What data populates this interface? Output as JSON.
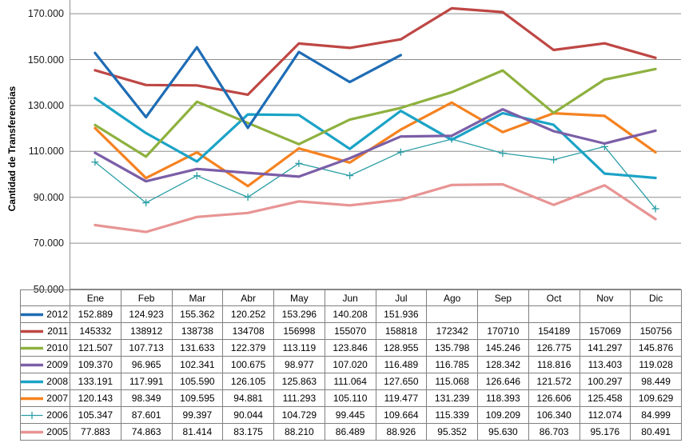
{
  "chart": {
    "y_axis_title": "Cantidad de Transferencias",
    "y_ticks": [
      "170.000",
      "150.000",
      "130.000",
      "110.000",
      "90.000",
      "70.000",
      "50.000"
    ],
    "grid_color": "#8E8E8E",
    "axis_color": "#8E8E8E",
    "table_border_color": "#808080"
  },
  "chart_data": {
    "type": "line",
    "title": "",
    "xlabel": "",
    "ylabel": "Cantidad de Transferencias",
    "ylim": [
      50000,
      170000
    ],
    "y_tick_interval": 20000,
    "grid": true,
    "legend_position": "data-table-left",
    "categories": [
      "Ene",
      "Feb",
      "Mar",
      "Abr",
      "May",
      "Jun",
      "Jul",
      "Ago",
      "Sep",
      "Oct",
      "Nov",
      "Dic"
    ],
    "series": [
      {
        "name": "2012",
        "color": "#1E6CB5",
        "line_width": 3.2,
        "marker": "none",
        "values": [
          152889,
          124923,
          155362,
          120252,
          153296,
          140208,
          151936,
          null,
          null,
          null,
          null,
          null
        ],
        "labels": [
          "152.889",
          "124.923",
          "155.362",
          "120.252",
          "153.296",
          "140.208",
          "151.936",
          "",
          "",
          "",
          "",
          ""
        ]
      },
      {
        "name": "2011",
        "color": "#BE4744",
        "line_width": 3.2,
        "marker": "none",
        "values": [
          145332,
          138912,
          138738,
          134708,
          156998,
          155070,
          158818,
          172342,
          170710,
          154189,
          157069,
          150756
        ],
        "labels": [
          "145332",
          "138912",
          "138738",
          "134708",
          "156998",
          "155070",
          "158818",
          "172342",
          "170710",
          "154189",
          "157069",
          "150756"
        ]
      },
      {
        "name": "2010",
        "color": "#8EB13F",
        "line_width": 3.2,
        "marker": "none",
        "values": [
          121507,
          107713,
          131633,
          122379,
          113119,
          123846,
          128955,
          135798,
          145246,
          126775,
          141297,
          145876
        ],
        "labels": [
          "121.507",
          "107.713",
          "131.633",
          "122.379",
          "113.119",
          "123.846",
          "128.955",
          "135.798",
          "145.246",
          "126.775",
          "141.297",
          "145.876"
        ]
      },
      {
        "name": "2009",
        "color": "#7B5EA7",
        "line_width": 3.2,
        "marker": "none",
        "values": [
          109370,
          96965,
          102341,
          100675,
          98977,
          107020,
          116489,
          116785,
          128342,
          118816,
          113403,
          119028
        ],
        "labels": [
          "109.370",
          "96.965",
          "102.341",
          "100.675",
          "98.977",
          "107.020",
          "116.489",
          "116.785",
          "128.342",
          "118.816",
          "113.403",
          "119.028"
        ]
      },
      {
        "name": "2008",
        "color": "#1BA3C6",
        "line_width": 3.2,
        "marker": "none",
        "values": [
          133191,
          117991,
          105590,
          126105,
          125863,
          111064,
          127650,
          115068,
          126646,
          121572,
          100297,
          98449
        ],
        "labels": [
          "133.191",
          "117.991",
          "105.590",
          "126.105",
          "125.863",
          "111.064",
          "127.650",
          "115.068",
          "126.646",
          "121.572",
          "100.297",
          "98.449"
        ]
      },
      {
        "name": "2007",
        "color": "#F58220",
        "line_width": 3.2,
        "marker": "none",
        "values": [
          120143,
          98349,
          109595,
          94881,
          111293,
          105110,
          119477,
          131239,
          118393,
          126606,
          125458,
          109629
        ],
        "labels": [
          "120.143",
          "98.349",
          "109.595",
          "94.881",
          "111.293",
          "105.110",
          "119.477",
          "131.239",
          "118.393",
          "126.606",
          "125.458",
          "109.629"
        ]
      },
      {
        "name": "2006",
        "color": "#2A9EA5",
        "line_width": 1.3,
        "marker": "plus",
        "values": [
          105347,
          87601,
          99397,
          90044,
          104729,
          99445,
          109664,
          115339,
          109209,
          106340,
          112074,
          84999
        ],
        "labels": [
          "105.347",
          "87.601",
          "99.397",
          "90.044",
          "104.729",
          "99.445",
          "109.664",
          "115.339",
          "109.209",
          "106.340",
          "112.074",
          "84.999"
        ]
      },
      {
        "name": "2005",
        "color": "#E89494",
        "line_width": 3.2,
        "marker": "none",
        "values": [
          77883,
          74863,
          81414,
          83175,
          88210,
          86489,
          88926,
          95352,
          95630,
          86703,
          95176,
          80491
        ],
        "labels": [
          "77.883",
          "74.863",
          "81.414",
          "83.175",
          "88.210",
          "86.489",
          "88.926",
          "95.352",
          "95.630",
          "86.703",
          "95.176",
          "80.491"
        ]
      }
    ]
  }
}
